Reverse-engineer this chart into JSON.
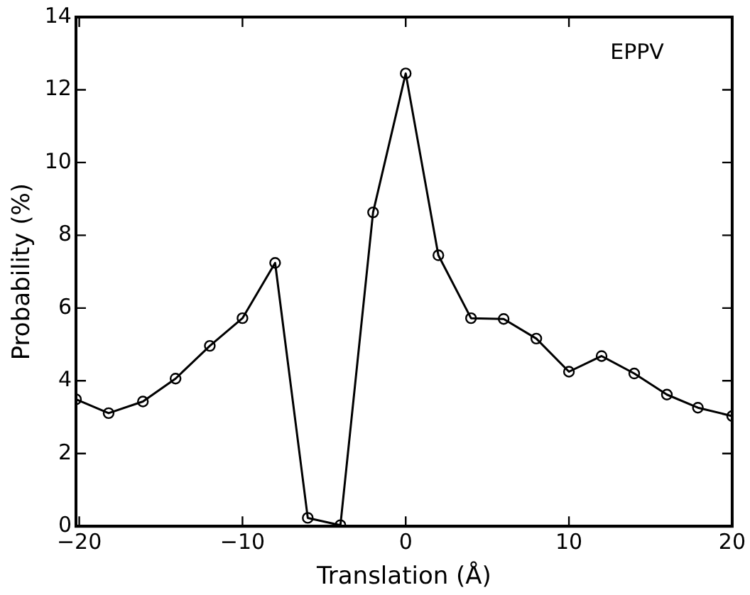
{
  "chart_data": {
    "type": "line",
    "xlabel": "Translation (Å)",
    "ylabel": "Probability (%)",
    "annotations": [
      "EPPV"
    ],
    "x": [
      -20.2,
      -18.2,
      -16.1,
      -14.1,
      -12,
      -10,
      -8,
      -6,
      -4,
      -2,
      0,
      2,
      4,
      6,
      8,
      10,
      12,
      14,
      16,
      17.9,
      20
    ],
    "series": [
      {
        "color": "#000000",
        "values": [
          3.49,
          3.11,
          3.43,
          4.06,
          4.96,
          5.72,
          7.24,
          0.23,
          0.03,
          8.63,
          12.45,
          7.45,
          5.72,
          5.7,
          5.16,
          4.25,
          4.68,
          4.2,
          3.62,
          3.26,
          3.03
        ]
      }
    ],
    "xlim": [
      -20.2,
      20
    ],
    "ylim": [
      0,
      14
    ],
    "xticks": [
      -20,
      -10,
      0,
      10,
      20
    ],
    "yticks": [
      0,
      2,
      4,
      6,
      8,
      10,
      12,
      14
    ],
    "marker": "circle",
    "line_style": "solid",
    "legend": false,
    "grid": false
  }
}
